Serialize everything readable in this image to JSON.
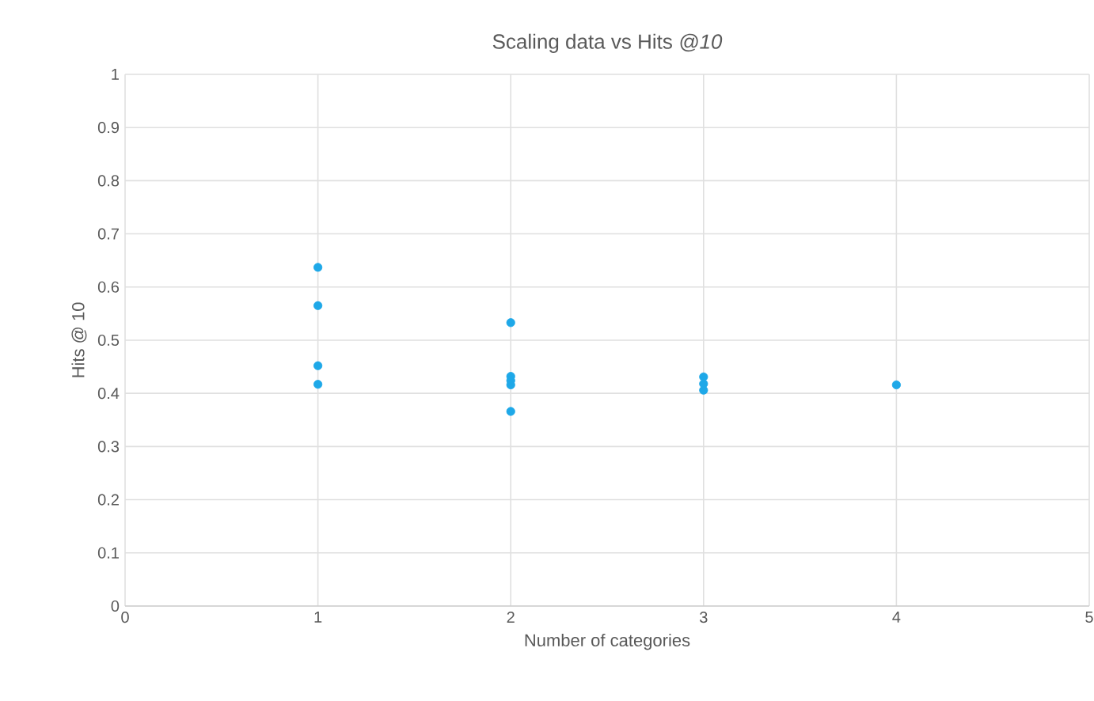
{
  "chart_data": {
    "type": "scatter",
    "title": "Scaling data vs Hits *@10*",
    "xlabel": "Number of categories",
    "ylabel": "Hits @ 10",
    "series": [
      {
        "color": "#1ea8e8",
        "x": [
          1,
          1,
          1,
          1,
          2,
          2,
          2,
          2,
          2,
          3,
          3,
          3,
          4
        ],
        "values": [
          0.637,
          0.565,
          0.452,
          0.417,
          0.533,
          0.432,
          0.424,
          0.416,
          0.366,
          0.431,
          0.418,
          0.406,
          0.416
        ]
      }
    ],
    "xlim": [
      0,
      5
    ],
    "xticks": [
      0,
      1,
      2,
      3,
      4,
      5
    ],
    "ylim": [
      0,
      1
    ],
    "yticks": [
      0,
      0.1,
      0.2,
      0.3,
      0.4,
      0.5,
      0.6,
      0.7,
      0.8,
      0.9,
      1
    ],
    "grid": true,
    "marker": "circle"
  }
}
